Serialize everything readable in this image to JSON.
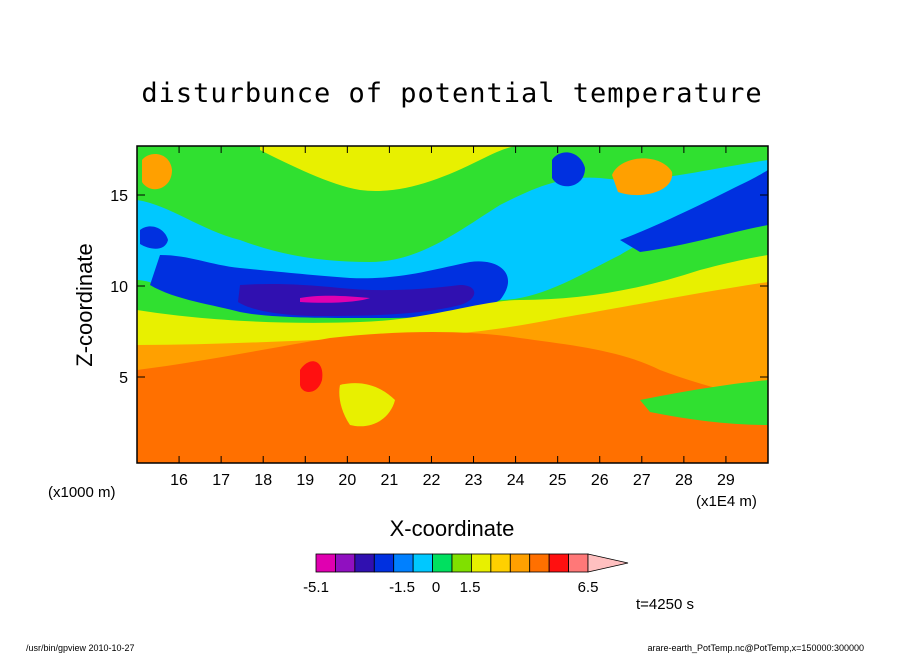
{
  "chart_data": {
    "type": "heatmap",
    "title": "disturbunce of potential temperature",
    "xlabel": "X-coordinate",
    "ylabel": "Z-coordinate",
    "x_unit_left": "(x1000 m)",
    "x_unit_right": "(x1E4 m)",
    "xlim": [
      15.0,
      30.0
    ],
    "ylim": [
      0,
      17.5
    ],
    "xticks": [
      "16",
      "17",
      "18",
      "19",
      "20",
      "21",
      "22",
      "23",
      "24",
      "25",
      "26",
      "27",
      "28",
      "29"
    ],
    "yticks": [
      "5",
      "10",
      "15"
    ],
    "time_label": "t=4250 s",
    "colorbar": {
      "min": -5.1,
      "max": 6.5,
      "tick_labels": [
        "-5.1",
        "-1.5",
        "0",
        "1.5",
        "6.5"
      ],
      "colors": [
        "#e000b0",
        "#9010c0",
        "#3010b0",
        "#0030e0",
        "#0080ff",
        "#00c8ff",
        "#00e060",
        "#80e000",
        "#e8f000",
        "#ffd000",
        "#ffa000",
        "#ff7000",
        "#ff1010",
        "#ff7878",
        "#ffc0c0"
      ]
    },
    "field_colors": {
      "neg_strong": "#e000b0",
      "neg": "#3010b0",
      "neg_mid": "#0030e0",
      "neg_weak": "#00c8ff",
      "zero": "#30e030",
      "pos_weak": "#e8f000",
      "pos": "#ffa000",
      "pos_mid": "#ff7000",
      "pos_strong": "#ff1010"
    }
  },
  "footer": {
    "left": "/usr/bin/gpview  2010-10-27",
    "right": "arare-earth_PotTemp.nc@PotTemp,x=150000:300000"
  }
}
